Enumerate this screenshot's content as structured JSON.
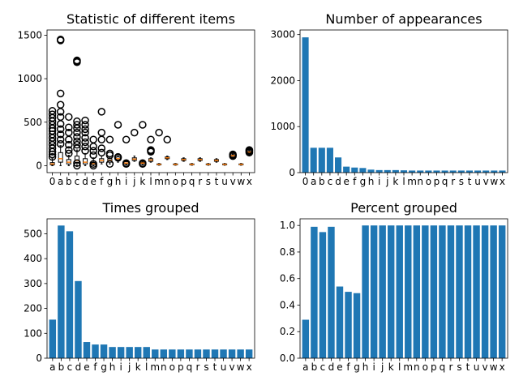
{
  "figure": {
    "background": "#ffffff",
    "bar_color": "#1f77b4",
    "median_color": "#ff7f0e"
  },
  "chart_data": [
    {
      "type": "box",
      "title": "Statistic of different items",
      "categories": [
        "0",
        "a",
        "b",
        "c",
        "d",
        "e",
        "f",
        "g",
        "h",
        "i",
        "j",
        "k",
        "l",
        "m",
        "n",
        "o",
        "p",
        "q",
        "r",
        "s",
        "t",
        "u",
        "v",
        "w",
        "x"
      ],
      "boxes": [
        {
          "q1": 10,
          "median": 20,
          "q3": 35,
          "whisker_low": 0,
          "whisker_high": 80,
          "outliers": [
            100,
            130,
            160,
            200,
            240,
            280,
            320,
            360,
            400,
            430,
            470,
            510,
            550,
            590,
            630
          ]
        },
        {
          "q1": 40,
          "median": 80,
          "q3": 150,
          "whisker_low": 0,
          "whisker_high": 230,
          "outliers": [
            250,
            300,
            360,
            420,
            480,
            560,
            620,
            700,
            830,
            1440,
            1450
          ]
        },
        {
          "q1": 20,
          "median": 40,
          "q3": 70,
          "whisker_low": 0,
          "whisker_high": 120,
          "outliers": [
            140,
            180,
            240,
            300,
            380,
            440,
            560
          ]
        },
        {
          "q1": 30,
          "median": 60,
          "q3": 110,
          "whisker_low": 0,
          "whisker_high": 180,
          "outliers": [
            0,
            30,
            200,
            240,
            280,
            330,
            380,
            430,
            470,
            510,
            1190,
            1200,
            1210
          ]
        },
        {
          "q1": 20,
          "median": 40,
          "q3": 80,
          "whisker_low": 0,
          "whisker_high": 140,
          "outliers": [
            170,
            220,
            270,
            320,
            380,
            420,
            470,
            520
          ]
        },
        {
          "q1": 10,
          "median": 25,
          "q3": 50,
          "whisker_low": 0,
          "whisker_high": 90,
          "outliers": [
            0,
            20,
            120,
            170,
            220,
            300
          ]
        },
        {
          "q1": 40,
          "median": 60,
          "q3": 80,
          "whisker_low": 20,
          "whisker_high": 110,
          "outliers": [
            150,
            200,
            300,
            380,
            620
          ]
        },
        {
          "q1": 40,
          "median": 60,
          "q3": 80,
          "whisker_low": 20,
          "whisker_high": 100,
          "outliers": [
            20,
            120,
            140,
            300
          ]
        },
        {
          "q1": 60,
          "median": 80,
          "q3": 100,
          "whisker_low": 40,
          "whisker_high": 110,
          "outliers": [
            90,
            100,
            470
          ]
        },
        {
          "q1": 20,
          "median": 30,
          "q3": 45,
          "whisker_low": 10,
          "whisker_high": 60,
          "outliers": [
            20,
            30,
            300
          ]
        },
        {
          "q1": 60,
          "median": 75,
          "q3": 90,
          "whisker_low": 50,
          "whisker_high": 110,
          "outliers": [
            380
          ]
        },
        {
          "q1": 20,
          "median": 30,
          "q3": 40,
          "whisker_low": 10,
          "whisker_high": 50,
          "outliers": [
            20,
            30,
            470
          ]
        },
        {
          "q1": 50,
          "median": 65,
          "q3": 80,
          "whisker_low": 40,
          "whisker_high": 90,
          "outliers": [
            160,
            170,
            180,
            300
          ]
        },
        {
          "q1": 10,
          "median": 15,
          "q3": 20,
          "whisker_low": 5,
          "whisker_high": 25,
          "outliers": [
            380
          ]
        },
        {
          "q1": 80,
          "median": 90,
          "q3": 100,
          "whisker_low": 70,
          "whisker_high": 110,
          "outliers": [
            300
          ]
        },
        {
          "q1": 10,
          "median": 15,
          "q3": 20,
          "whisker_low": 5,
          "whisker_high": 25,
          "outliers": []
        },
        {
          "q1": 60,
          "median": 70,
          "q3": 80,
          "whisker_low": 50,
          "whisker_high": 90,
          "outliers": []
        },
        {
          "q1": 10,
          "median": 15,
          "q3": 20,
          "whisker_low": 5,
          "whisker_high": 25,
          "outliers": []
        },
        {
          "q1": 60,
          "median": 70,
          "q3": 80,
          "whisker_low": 50,
          "whisker_high": 90,
          "outliers": []
        },
        {
          "q1": 10,
          "median": 15,
          "q3": 20,
          "whisker_low": 5,
          "whisker_high": 25,
          "outliers": []
        },
        {
          "q1": 50,
          "median": 60,
          "q3": 70,
          "whisker_low": 40,
          "whisker_high": 80,
          "outliers": []
        },
        {
          "q1": 10,
          "median": 15,
          "q3": 20,
          "whisker_low": 5,
          "whisker_high": 25,
          "outliers": []
        },
        {
          "q1": 100,
          "median": 115,
          "q3": 125,
          "whisker_low": 90,
          "whisker_high": 135,
          "outliers": [
            110,
            120,
            130
          ]
        },
        {
          "q1": 10,
          "median": 15,
          "q3": 20,
          "whisker_low": 5,
          "whisker_high": 25,
          "outliers": []
        },
        {
          "q1": 140,
          "median": 155,
          "q3": 165,
          "whisker_low": 130,
          "whisker_high": 175,
          "outliers": [
            150,
            160,
            170,
            180
          ]
        }
      ],
      "ylim": [
        -80,
        1560
      ],
      "yticks": [
        0,
        500,
        1000,
        1500
      ]
    },
    {
      "type": "bar",
      "title": "Number of appearances",
      "categories": [
        "0",
        "a",
        "b",
        "c",
        "d",
        "e",
        "f",
        "g",
        "h",
        "i",
        "j",
        "k",
        "l",
        "m",
        "n",
        "o",
        "p",
        "q",
        "r",
        "s",
        "t",
        "u",
        "v",
        "w",
        "x"
      ],
      "values": [
        2940,
        540,
        540,
        540,
        330,
        130,
        110,
        100,
        65,
        55,
        55,
        55,
        50,
        45,
        45,
        45,
        45,
        45,
        45,
        45,
        45,
        45,
        45,
        45,
        45
      ],
      "ylim": [
        0,
        3100
      ],
      "yticks": [
        0,
        1000,
        2000,
        3000
      ]
    },
    {
      "type": "bar",
      "title": "Times grouped",
      "categories": [
        "a",
        "b",
        "c",
        "d",
        "e",
        "f",
        "g",
        "h",
        "i",
        "j",
        "k",
        "l",
        "m",
        "n",
        "o",
        "p",
        "q",
        "r",
        "s",
        "t",
        "u",
        "v",
        "w",
        "x"
      ],
      "values": [
        155,
        533,
        510,
        310,
        65,
        55,
        55,
        45,
        45,
        45,
        45,
        45,
        35,
        35,
        35,
        35,
        35,
        35,
        35,
        35,
        35,
        35,
        35,
        35
      ],
      "ylim": [
        0,
        560
      ],
      "yticks": [
        0,
        100,
        200,
        300,
        400,
        500
      ]
    },
    {
      "type": "bar",
      "title": "Percent grouped",
      "categories": [
        "a",
        "b",
        "c",
        "d",
        "e",
        "f",
        "g",
        "h",
        "i",
        "j",
        "k",
        "l",
        "m",
        "n",
        "o",
        "p",
        "q",
        "r",
        "s",
        "t",
        "u",
        "v",
        "w",
        "x"
      ],
      "values": [
        0.29,
        0.99,
        0.95,
        0.99,
        0.54,
        0.5,
        0.49,
        1.0,
        1.0,
        1.0,
        1.0,
        1.0,
        1.0,
        1.0,
        1.0,
        1.0,
        1.0,
        1.0,
        1.0,
        1.0,
        1.0,
        1.0,
        1.0,
        1.0
      ],
      "ylim": [
        0,
        1.05
      ],
      "yticks": [
        "0.0",
        "0.2",
        "0.4",
        "0.6",
        "0.8",
        "1.0"
      ]
    }
  ]
}
